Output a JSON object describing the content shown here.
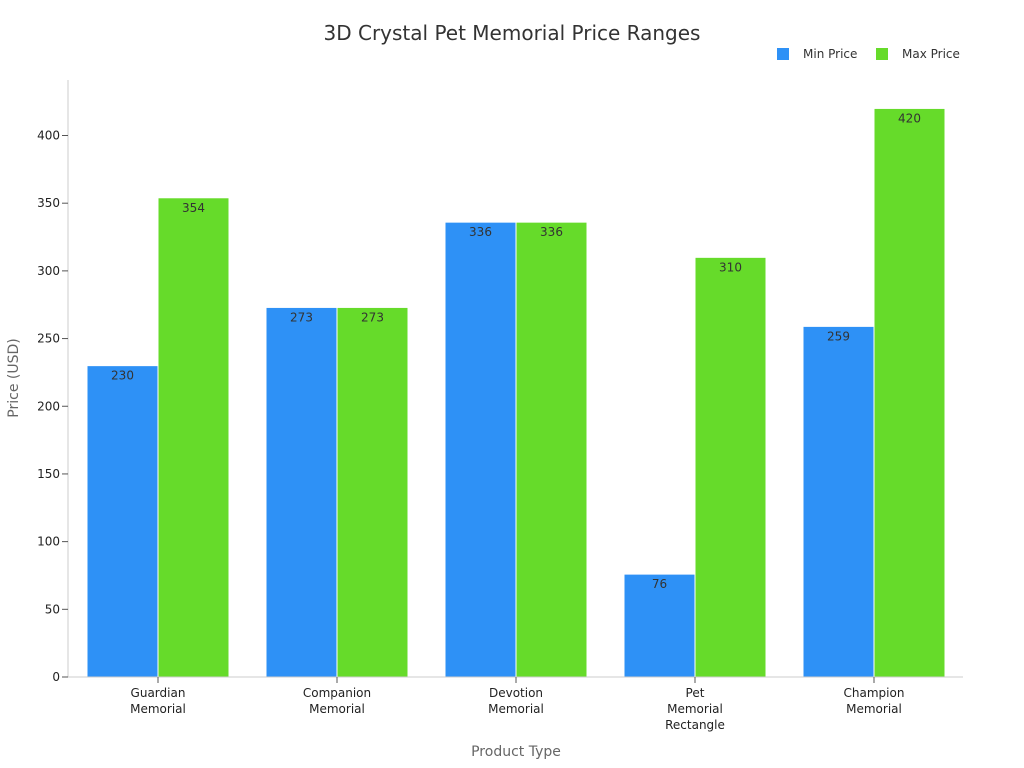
{
  "colors": {
    "min_price": "#2e91f6",
    "max_price": "#66db2a",
    "axis": "#cccccc",
    "tick": "#555555"
  },
  "chart_data": {
    "type": "bar",
    "title": "3D Crystal Pet Memorial Price Ranges",
    "xlabel": "Product Type",
    "ylabel": "Price (USD)",
    "categories": [
      [
        "Guardian",
        "Memorial"
      ],
      [
        "Companion",
        "Memorial"
      ],
      [
        "Devotion",
        "Memorial"
      ],
      [
        "Pet",
        "Memorial",
        "Rectangle"
      ],
      [
        "Champion",
        "Memorial"
      ]
    ],
    "series": [
      {
        "name": "Min Price",
        "values": [
          230,
          273,
          336,
          76,
          259
        ]
      },
      {
        "name": "Max Price",
        "values": [
          354,
          273,
          336,
          310,
          420
        ]
      }
    ],
    "ylim": [
      0,
      440
    ],
    "yticks": [
      0,
      50,
      100,
      150,
      200,
      250,
      300,
      350,
      400
    ],
    "grid": false,
    "legend": "top-right",
    "data_labels": true
  }
}
